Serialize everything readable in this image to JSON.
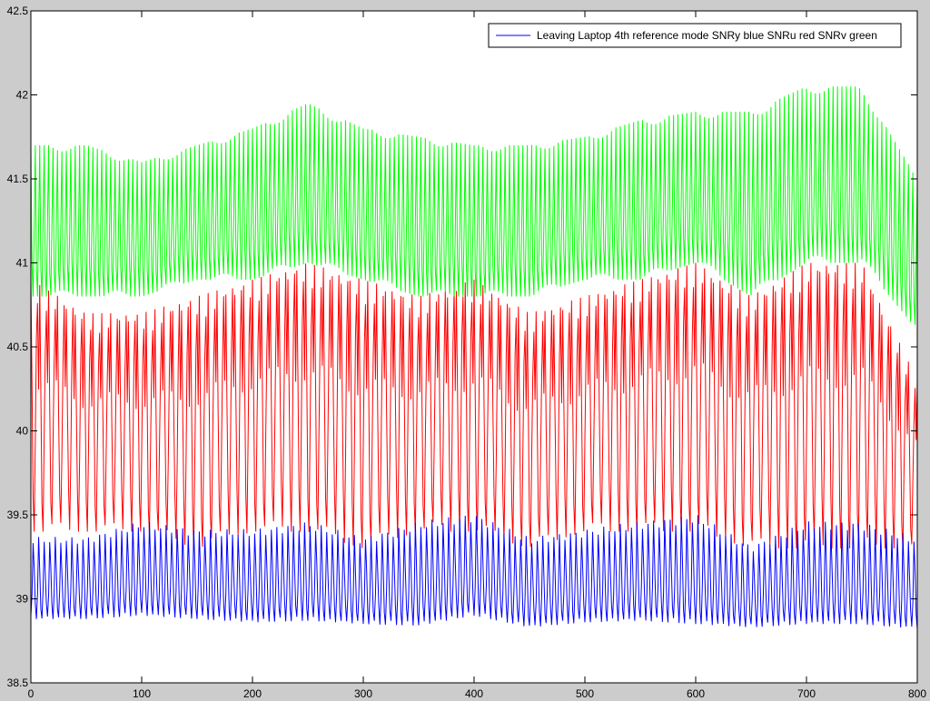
{
  "chart_data": {
    "type": "line",
    "title": "",
    "xlabel": "",
    "ylabel": "",
    "xlim": [
      0,
      800
    ],
    "ylim": [
      38.5,
      42.5
    ],
    "xticks": [
      0,
      100,
      200,
      300,
      400,
      500,
      600,
      700,
      800
    ],
    "yticks": [
      38.5,
      39,
      39.5,
      40,
      40.5,
      41,
      41.5,
      42,
      42.5
    ],
    "grid": false,
    "legend": {
      "placement": "top-right",
      "entries": [
        {
          "label": "Leaving Laptop 4th reference mode SNRy blue SNRu red SNRv green",
          "color": "#0000ff"
        }
      ]
    },
    "series": [
      {
        "color": "#ff0000",
        "drawOrder": 1,
        "period": 8,
        "shape": [
          1.0,
          0.55,
          0.15,
          0.0,
          0.35,
          0.75,
          0.95,
          0.6
        ],
        "x": [
          0,
          50,
          100,
          150,
          200,
          250,
          300,
          350,
          400,
          450,
          500,
          550,
          600,
          650,
          700,
          750,
          800
        ],
        "low": [
          39.4,
          39.4,
          39.4,
          39.3,
          39.4,
          39.4,
          39.3,
          39.4,
          39.4,
          39.3,
          39.4,
          39.4,
          39.4,
          39.3,
          39.3,
          39.3,
          39.3
        ],
        "high": [
          40.9,
          40.7,
          40.7,
          40.8,
          40.9,
          41.0,
          40.9,
          40.8,
          40.9,
          40.7,
          40.8,
          40.9,
          41.0,
          40.8,
          41.0,
          41.0,
          40.3
        ]
      },
      {
        "color": "#00ff00",
        "drawOrder": 2,
        "period": 4,
        "shape": [
          1.0,
          0.2,
          0.0,
          0.45
        ],
        "x": [
          0,
          50,
          100,
          150,
          200,
          250,
          300,
          350,
          400,
          450,
          500,
          550,
          600,
          650,
          700,
          750,
          800
        ],
        "low": [
          40.8,
          40.8,
          40.8,
          40.9,
          40.9,
          41.0,
          40.9,
          40.8,
          40.8,
          40.8,
          40.9,
          40.9,
          41.0,
          40.8,
          41.0,
          41.0,
          40.6
        ],
        "high": [
          41.7,
          41.7,
          41.6,
          41.7,
          41.8,
          41.95,
          41.8,
          41.75,
          41.7,
          41.7,
          41.75,
          41.85,
          41.9,
          41.9,
          42.05,
          42.05,
          41.5
        ]
      },
      {
        "color": "#0000ff",
        "drawOrder": 3,
        "period": 5,
        "shape": [
          0.0,
          0.3,
          0.9,
          0.55,
          0.15
        ],
        "x": [
          0,
          50,
          100,
          150,
          200,
          250,
          300,
          350,
          400,
          450,
          500,
          550,
          600,
          650,
          700,
          750,
          800
        ],
        "low": [
          38.88,
          38.88,
          38.9,
          38.88,
          38.86,
          38.87,
          38.85,
          38.84,
          38.9,
          38.83,
          38.86,
          38.87,
          38.85,
          38.83,
          38.85,
          38.85,
          38.82
        ],
        "high": [
          39.4,
          39.4,
          39.5,
          39.45,
          39.45,
          39.5,
          39.4,
          39.5,
          39.55,
          39.4,
          39.45,
          39.5,
          39.55,
          39.35,
          39.5,
          39.5,
          39.4
        ]
      }
    ]
  }
}
